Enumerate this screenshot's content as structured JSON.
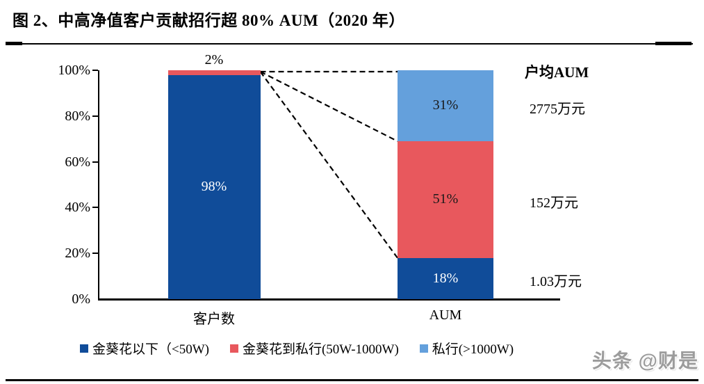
{
  "title": "图 2、中高净值客户贡献招行超 80% AUM（2020 年）",
  "watermark": "头条 @财是",
  "colors": {
    "dark_blue": "#104C99",
    "red": "#E8585D",
    "light_blue": "#64A0DC",
    "axis": "#000000",
    "label_light": "#ffffff",
    "label_dark": "#1a1a1a",
    "watermark_gray": "#9c9c9c"
  },
  "chart_data": {
    "type": "bar",
    "stacked": true,
    "title": "图 2、中高净值客户贡献招行超 80% AUM（2020 年）",
    "xlabel": "",
    "ylabel": "",
    "unit": "percent",
    "ylim": [
      0,
      100
    ],
    "grid": false,
    "legend_position": "bottom",
    "categories": [
      "客户数",
      "AUM"
    ],
    "y_ticks": [
      "0%",
      "20%",
      "40%",
      "60%",
      "80%",
      "100%"
    ],
    "series": [
      {
        "name": "金葵花以下（<50W)",
        "color_key": "dark_blue",
        "values": [
          98,
          18
        ],
        "label_color_key": "label_light"
      },
      {
        "name": "金葵花到私行(50W-1000W)",
        "color_key": "red",
        "values": [
          2,
          51
        ],
        "label_color_key": "label_dark"
      },
      {
        "name": "私行(>1000W)",
        "color_key": "light_blue",
        "values": [
          0,
          31
        ],
        "label_color_key": "label_dark"
      }
    ],
    "data_labels": {
      "客户数": [
        "98%",
        "2%"
      ],
      "AUM": [
        "18%",
        "51%",
        "31%"
      ]
    },
    "connectors": "dashed lines from top of 客户数 bar to AUM segment boundaries at 100%, 69%, 18%",
    "right_column": {
      "header": "户均AUM",
      "values": [
        "2775万元",
        "152万元",
        "1.03万元"
      ]
    }
  }
}
